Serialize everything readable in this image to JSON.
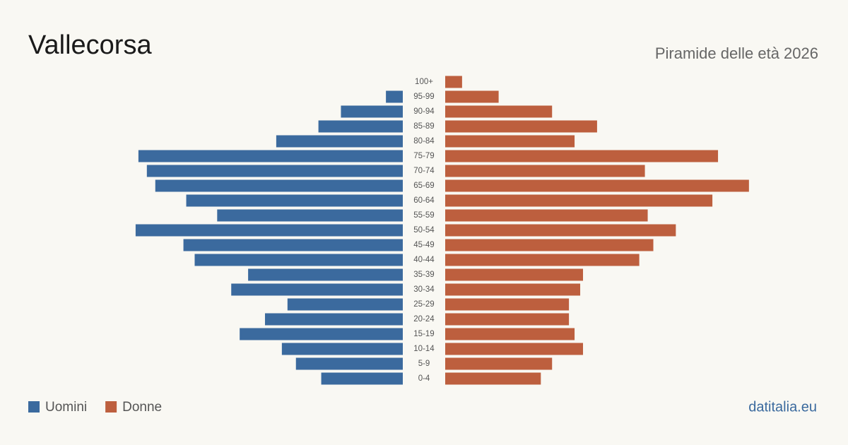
{
  "chart_data": {
    "type": "pyramid",
    "title": "Vallecorsa",
    "subtitle": "Piramide delle età 2026",
    "source": "datitalia.eu",
    "categories": [
      "100+",
      "95-99",
      "90-94",
      "85-89",
      "80-84",
      "75-79",
      "70-74",
      "65-69",
      "60-64",
      "55-59",
      "50-54",
      "45-49",
      "40-44",
      "35-39",
      "30-34",
      "25-29",
      "20-24",
      "15-19",
      "10-14",
      "5-9",
      "0-4"
    ],
    "series": [
      {
        "name": "Uomini",
        "color": "#3b6a9e",
        "values": [
          0,
          6,
          22,
          30,
          45,
          94,
          91,
          88,
          77,
          66,
          95,
          78,
          74,
          55,
          61,
          41,
          49,
          58,
          43,
          38,
          29
        ]
      },
      {
        "name": "Donne",
        "color": "#bd5f3e",
        "values": [
          6,
          19,
          38,
          54,
          46,
          97,
          71,
          108,
          95,
          72,
          82,
          74,
          69,
          49,
          48,
          44,
          44,
          46,
          49,
          38,
          34
        ]
      }
    ]
  }
}
